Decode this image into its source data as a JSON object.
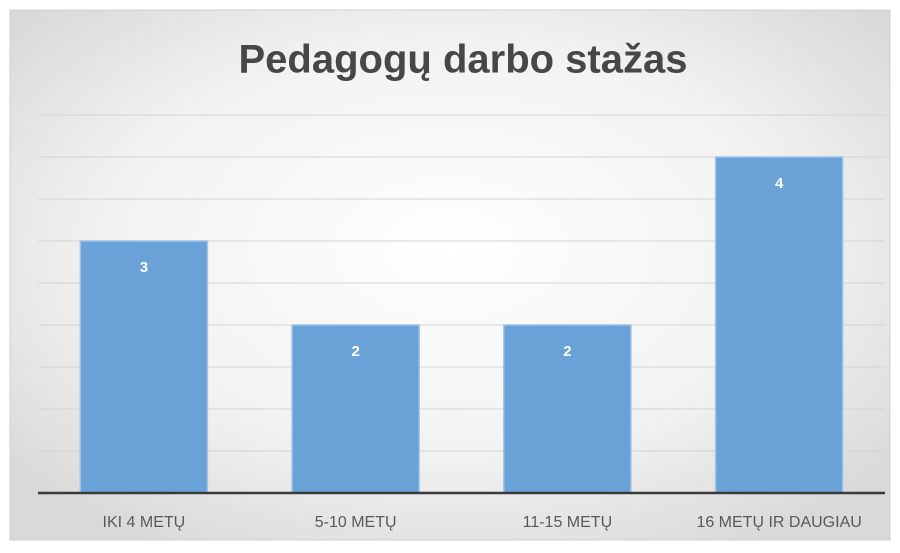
{
  "chart_data": {
    "type": "bar",
    "title": "Pedagogų darbo stažas",
    "categories": [
      "IKI 4 METŲ",
      "5-10 METŲ",
      "11-15 METŲ",
      "16 METŲ IR DAUGIAU"
    ],
    "values": [
      3,
      2,
      2,
      4
    ],
    "color": "#6aa2d8",
    "ylim": [
      0,
      4.5
    ],
    "yticks": [
      0,
      0.5,
      1,
      1.5,
      2,
      2.5,
      3,
      3.5,
      4,
      4.5
    ],
    "grid": true
  }
}
